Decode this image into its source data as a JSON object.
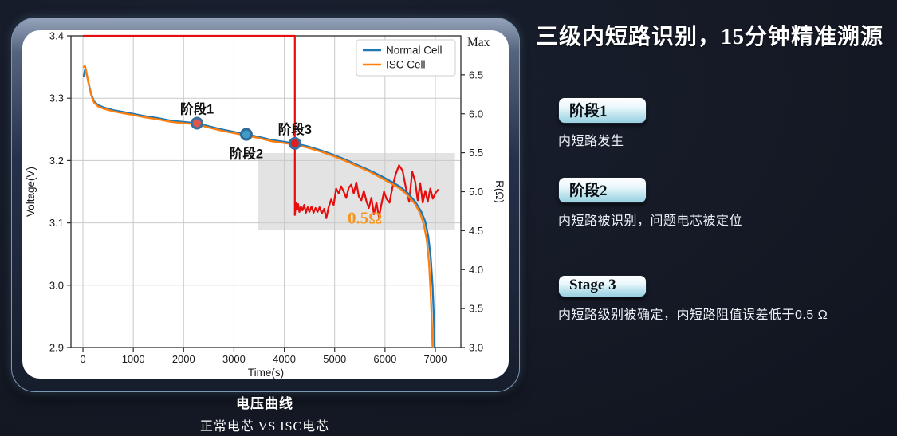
{
  "caption": {
    "line1": "电压曲线",
    "line2": "正常电芯 VS ISC电芯"
  },
  "right_panel": {
    "title": "三级内短路识别，15分钟精准溯源",
    "stages": [
      {
        "badge": "阶段1",
        "desc": "内短路发生"
      },
      {
        "badge": "阶段2",
        "desc": "内短路被识别，问题电芯被定位"
      },
      {
        "badge": "Stage 3",
        "desc": "内短路级别被确定，内短路阻值误差低于0.5 Ω"
      }
    ]
  },
  "chart_data": {
    "type": "line",
    "xlabel": "Time(s)",
    "ylabel_left": "Voltage(V)",
    "ylabel_right": "R(Ω)",
    "xlim": [
      -238,
      7507
    ],
    "ylim_left": [
      2.9,
      3.4
    ],
    "ylim_right": [
      3.0,
      7.0
    ],
    "grid": true,
    "x_ticks": {
      "values": [
        0,
        1000,
        2000,
        3000,
        4000,
        5000,
        6000,
        7000
      ],
      "labels": [
        "0",
        "1000",
        "2000",
        "3000",
        "4000",
        "5000",
        "6000",
        "7000"
      ]
    },
    "y_ticks_left": {
      "values": [
        2.9,
        3.0,
        3.1,
        3.2,
        3.3,
        3.4
      ],
      "labels": [
        "2.9",
        "3.0",
        "3.1",
        "3.2",
        "3.3",
        "3.4"
      ]
    },
    "y_ticks_right": {
      "values": [
        3.0,
        3.5,
        4.0,
        4.5,
        5.0,
        5.5,
        6.0,
        6.5
      ],
      "labels": [
        "3.0",
        "3.5",
        "4.0",
        "4.5",
        "5.0",
        "5.5",
        "6.0",
        "6.5"
      ]
    },
    "y_right_max": {
      "value": 7.0,
      "label": "Max"
    },
    "legend": {
      "position": "upper right"
    },
    "shaded_region": {
      "t": [
        3480,
        7390
      ],
      "v": [
        3.088,
        3.212
      ],
      "color": "#e3e3e3"
    },
    "series": [
      {
        "name": "Normal Cell",
        "color": "#1f77b4",
        "points": [
          [
            15,
            3.335
          ],
          [
            40,
            3.346
          ],
          [
            70,
            3.34
          ],
          [
            110,
            3.325
          ],
          [
            160,
            3.308
          ],
          [
            220,
            3.295
          ],
          [
            300,
            3.289
          ],
          [
            420,
            3.285
          ],
          [
            600,
            3.281
          ],
          [
            800,
            3.278
          ],
          [
            1000,
            3.275
          ],
          [
            1250,
            3.271
          ],
          [
            1500,
            3.268
          ],
          [
            1750,
            3.264
          ],
          [
            2000,
            3.262
          ],
          [
            2265,
            3.26
          ],
          [
            2500,
            3.255
          ],
          [
            2750,
            3.25
          ],
          [
            3000,
            3.246
          ],
          [
            3245,
            3.242
          ],
          [
            3500,
            3.238
          ],
          [
            3750,
            3.233
          ],
          [
            4000,
            3.23
          ],
          [
            4210,
            3.2275
          ],
          [
            4450,
            3.223
          ],
          [
            4700,
            3.217
          ],
          [
            4950,
            3.21
          ],
          [
            5200,
            3.202
          ],
          [
            5450,
            3.193
          ],
          [
            5700,
            3.184
          ],
          [
            5950,
            3.174
          ],
          [
            6150,
            3.165
          ],
          [
            6300,
            3.158
          ],
          [
            6450,
            3.148
          ],
          [
            6600,
            3.134
          ],
          [
            6720,
            3.118
          ],
          [
            6800,
            3.102
          ],
          [
            6860,
            3.078
          ],
          [
            6910,
            3.043
          ],
          [
            6945,
            3.0
          ],
          [
            6970,
            2.95
          ],
          [
            6985,
            2.9
          ]
        ]
      },
      {
        "name": "ISC Cell",
        "color": "#ff7f0e",
        "points": [
          [
            15,
            3.35
          ],
          [
            40,
            3.352
          ],
          [
            70,
            3.342
          ],
          [
            110,
            3.324
          ],
          [
            160,
            3.306
          ],
          [
            220,
            3.293
          ],
          [
            300,
            3.287
          ],
          [
            420,
            3.283
          ],
          [
            600,
            3.279
          ],
          [
            800,
            3.276
          ],
          [
            1000,
            3.273
          ],
          [
            1250,
            3.269
          ],
          [
            1500,
            3.266
          ],
          [
            1750,
            3.262
          ],
          [
            2000,
            3.26
          ],
          [
            2265,
            3.258
          ],
          [
            2500,
            3.253
          ],
          [
            2750,
            3.248
          ],
          [
            3000,
            3.244
          ],
          [
            3245,
            3.24
          ],
          [
            3500,
            3.236
          ],
          [
            3750,
            3.231
          ],
          [
            4000,
            3.228
          ],
          [
            4210,
            3.2255
          ],
          [
            4450,
            3.221
          ],
          [
            4700,
            3.215
          ],
          [
            4950,
            3.208
          ],
          [
            5200,
            3.2
          ],
          [
            5450,
            3.191
          ],
          [
            5700,
            3.182
          ],
          [
            5950,
            3.171
          ],
          [
            6150,
            3.162
          ],
          [
            6300,
            3.155
          ],
          [
            6450,
            3.144
          ],
          [
            6600,
            3.13
          ],
          [
            6700,
            3.115
          ],
          [
            6770,
            3.098
          ],
          [
            6830,
            3.072
          ],
          [
            6875,
            3.035
          ],
          [
            6905,
            2.99
          ],
          [
            6930,
            2.94
          ],
          [
            6945,
            2.9
          ]
        ]
      }
    ],
    "resistance_series": {
      "name": "ISC resistance",
      "color": "#e60d0d",
      "points": [
        [
          0,
          7.0
        ],
        [
          4210,
          7.0
        ],
        [
          4210,
          4.7
        ],
        [
          4235,
          4.86
        ],
        [
          4255,
          4.77
        ],
        [
          4275,
          4.84
        ],
        [
          4300,
          4.74
        ],
        [
          4330,
          4.81
        ],
        [
          4360,
          4.76
        ],
        [
          4395,
          4.83
        ],
        [
          4430,
          4.73
        ],
        [
          4465,
          4.8
        ],
        [
          4500,
          4.74
        ],
        [
          4540,
          4.81
        ],
        [
          4580,
          4.73
        ],
        [
          4620,
          4.79
        ],
        [
          4660,
          4.74
        ],
        [
          4700,
          4.8
        ],
        [
          4745,
          4.72
        ],
        [
          4790,
          4.78
        ],
        [
          4835,
          4.66
        ],
        [
          4880,
          4.8
        ],
        [
          4930,
          4.9
        ],
        [
          4980,
          4.83
        ],
        [
          5030,
          5.04
        ],
        [
          5080,
          4.98
        ],
        [
          5130,
          5.07
        ],
        [
          5180,
          5.0
        ],
        [
          5230,
          4.92
        ],
        [
          5280,
          5.05
        ],
        [
          5330,
          5.09
        ],
        [
          5380,
          4.98
        ],
        [
          5430,
          5.12
        ],
        [
          5480,
          4.94
        ],
        [
          5530,
          4.89
        ],
        [
          5580,
          5.01
        ],
        [
          5630,
          4.88
        ],
        [
          5680,
          4.79
        ],
        [
          5730,
          4.92
        ],
        [
          5780,
          4.71
        ],
        [
          5830,
          4.86
        ],
        [
          5880,
          4.67
        ],
        [
          5930,
          4.84
        ],
        [
          5980,
          5.0
        ],
        [
          6030,
          4.91
        ],
        [
          6090,
          4.86
        ],
        [
          6150,
          5.06
        ],
        [
          6210,
          5.22
        ],
        [
          6280,
          5.34
        ],
        [
          6350,
          5.27
        ],
        [
          6420,
          5.03
        ],
        [
          6480,
          4.87
        ],
        [
          6540,
          5.26
        ],
        [
          6600,
          5.13
        ],
        [
          6650,
          4.89
        ],
        [
          6700,
          5.11
        ],
        [
          6750,
          4.86
        ],
        [
          6800,
          5.01
        ],
        [
          6850,
          4.87
        ],
        [
          6900,
          5.04
        ],
        [
          6950,
          4.91
        ],
        [
          7000,
          4.98
        ],
        [
          7060,
          5.03
        ]
      ]
    },
    "annotations": [
      {
        "label": "阶段1",
        "t": 2265,
        "v": 3.26,
        "fill": "#e0564a",
        "edge": "#38719f",
        "label_pos": "above"
      },
      {
        "label": "阶段2",
        "t": 3245,
        "v": 3.242,
        "fill": "#419bc9",
        "edge": "#2e6b96",
        "label_pos": "below"
      },
      {
        "label": "阶段3",
        "t": 4210,
        "v": 3.2275,
        "fill": "#e11f1f",
        "edge": "#38719f",
        "label_pos": "above"
      }
    ],
    "resistance_label": {
      "text": "0.5Ω",
      "t": 5600,
      "v": 3.108,
      "color": "#f6941d"
    }
  }
}
